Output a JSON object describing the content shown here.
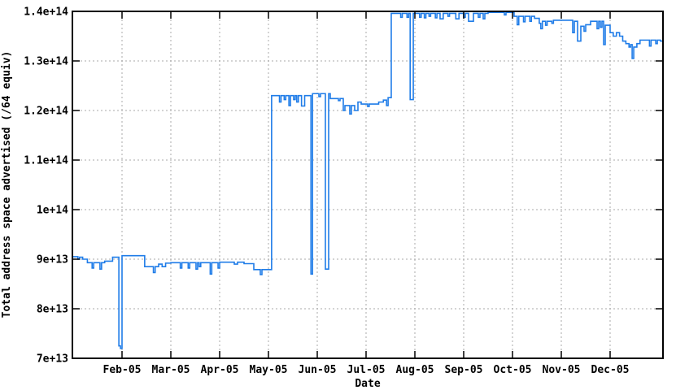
{
  "window": {
    "title": "Total address space advertised plot"
  },
  "colors": {
    "line": "#1f7ce8",
    "grid": "#aaaaaa",
    "axis": "#000000",
    "background": "#ffffff"
  },
  "chart_data": {
    "type": "line",
    "step": "after",
    "title": "",
    "xlabel": "Date",
    "ylabel": "Total address space advertised (/64 equiv)",
    "legend": "none",
    "grid": true,
    "value_unit": "1e12",
    "ylim": [
      70,
      140
    ],
    "x_range": [
      "2005-01-01",
      "2006-01-03"
    ],
    "y_ticks": [
      {
        "label": "7e+13",
        "value": 70
      },
      {
        "label": "8e+13",
        "value": 80
      },
      {
        "label": "9e+13",
        "value": 90
      },
      {
        "label": "1e+14",
        "value": 100
      },
      {
        "label": "1.1e+14",
        "value": 110
      },
      {
        "label": "1.2e+14",
        "value": 120
      },
      {
        "label": "1.3e+14",
        "value": 130
      },
      {
        "label": "1.4e+14",
        "value": 140
      }
    ],
    "x_ticks": [
      {
        "label": "Feb-05",
        "month": 1
      },
      {
        "label": "Mar-05",
        "month": 2
      },
      {
        "label": "Apr-05",
        "month": 3
      },
      {
        "label": "May-05",
        "month": 4
      },
      {
        "label": "Jun-05",
        "month": 5
      },
      {
        "label": "Jul-05",
        "month": 6
      },
      {
        "label": "Aug-05",
        "month": 7
      },
      {
        "label": "Sep-05",
        "month": 8
      },
      {
        "label": "Oct-05",
        "month": 9
      },
      {
        "label": "Nov-05",
        "month": 10
      },
      {
        "label": "Dec-05",
        "month": 11
      }
    ],
    "series": [
      {
        "name": "Total address space advertised (/64 equiv)",
        "points": [
          [
            "2005-01-01",
            90.5
          ],
          [
            "2005-01-04",
            90.0
          ],
          [
            "2005-01-05",
            90.4
          ],
          [
            "2005-01-07",
            90.0
          ],
          [
            "2005-01-10",
            89.3
          ],
          [
            "2005-01-13",
            88.2
          ],
          [
            "2005-01-14",
            89.3
          ],
          [
            "2005-01-18",
            88.0
          ],
          [
            "2005-01-19",
            89.3
          ],
          [
            "2005-01-21",
            89.6
          ],
          [
            "2005-01-26",
            90.4
          ],
          [
            "2005-01-30",
            72.5
          ],
          [
            "2005-01-31",
            72.0
          ],
          [
            "2005-02-01",
            90.7
          ],
          [
            "2005-02-14",
            88.5
          ],
          [
            "2005-02-19",
            87.3
          ],
          [
            "2005-02-20",
            88.5
          ],
          [
            "2005-02-22",
            89.0
          ],
          [
            "2005-02-24",
            88.5
          ],
          [
            "2005-02-26",
            89.2
          ],
          [
            "2005-03-01",
            89.3
          ],
          [
            "2005-03-07",
            88.2
          ],
          [
            "2005-03-08",
            89.3
          ],
          [
            "2005-03-12",
            88.2
          ],
          [
            "2005-03-13",
            89.3
          ],
          [
            "2005-03-17",
            88.0
          ],
          [
            "2005-03-18",
            89.3
          ],
          [
            "2005-03-19",
            88.5
          ],
          [
            "2005-03-20",
            89.3
          ],
          [
            "2005-03-26",
            87.0
          ],
          [
            "2005-03-27",
            89.3
          ],
          [
            "2005-03-31",
            88.2
          ],
          [
            "2005-04-01",
            89.4
          ],
          [
            "2005-04-10",
            89.0
          ],
          [
            "2005-04-12",
            89.4
          ],
          [
            "2005-04-16",
            89.1
          ],
          [
            "2005-04-22",
            87.9
          ],
          [
            "2005-04-26",
            86.9
          ],
          [
            "2005-04-27",
            87.9
          ],
          [
            "2005-05-03",
            123.0
          ],
          [
            "2005-05-08",
            121.7
          ],
          [
            "2005-05-09",
            123.0
          ],
          [
            "2005-05-11",
            122.2
          ],
          [
            "2005-05-12",
            123.0
          ],
          [
            "2005-05-14",
            121.0
          ],
          [
            "2005-05-15",
            123.0
          ],
          [
            "2005-05-17",
            122.2
          ],
          [
            "2005-05-18",
            123.0
          ],
          [
            "2005-05-19",
            121.7
          ],
          [
            "2005-05-20",
            123.0
          ],
          [
            "2005-05-22",
            120.9
          ],
          [
            "2005-05-24",
            123.0
          ],
          [
            "2005-05-28",
            87.0
          ],
          [
            "2005-05-29",
            123.4
          ],
          [
            "2005-06-02",
            122.8
          ],
          [
            "2005-06-03",
            123.4
          ],
          [
            "2005-06-06",
            88.0
          ],
          [
            "2005-06-08",
            123.4
          ],
          [
            "2005-06-09",
            122.4
          ],
          [
            "2005-06-14",
            122.0
          ],
          [
            "2005-06-15",
            122.4
          ],
          [
            "2005-06-17",
            120.0
          ],
          [
            "2005-06-18",
            121.0
          ],
          [
            "2005-06-21",
            119.3
          ],
          [
            "2005-06-22",
            121.0
          ],
          [
            "2005-06-24",
            120.0
          ],
          [
            "2005-06-26",
            121.7
          ],
          [
            "2005-06-28",
            121.3
          ],
          [
            "2005-07-02",
            120.8
          ],
          [
            "2005-07-03",
            121.3
          ],
          [
            "2005-07-09",
            121.7
          ],
          [
            "2005-07-12",
            122.1
          ],
          [
            "2005-07-14",
            121.0
          ],
          [
            "2005-07-15",
            122.6
          ],
          [
            "2005-07-17",
            139.6
          ],
          [
            "2005-07-23",
            138.8
          ],
          [
            "2005-07-24",
            139.6
          ],
          [
            "2005-07-27",
            138.8
          ],
          [
            "2005-07-28",
            139.6
          ],
          [
            "2005-07-29",
            122.2
          ],
          [
            "2005-07-31",
            139.6
          ],
          [
            "2005-08-04",
            138.8
          ],
          [
            "2005-08-05",
            139.6
          ],
          [
            "2005-08-07",
            138.7
          ],
          [
            "2005-08-08",
            139.6
          ],
          [
            "2005-08-10",
            139.0
          ],
          [
            "2005-08-11",
            139.6
          ],
          [
            "2005-08-14",
            138.7
          ],
          [
            "2005-08-15",
            139.6
          ],
          [
            "2005-08-17",
            138.5
          ],
          [
            "2005-08-19",
            139.6
          ],
          [
            "2005-08-22",
            139.0
          ],
          [
            "2005-08-23",
            139.6
          ],
          [
            "2005-08-27",
            138.5
          ],
          [
            "2005-08-29",
            139.6
          ],
          [
            "2005-09-01",
            138.8
          ],
          [
            "2005-09-02",
            139.6
          ],
          [
            "2005-09-04",
            138.0
          ],
          [
            "2005-09-07",
            139.6
          ],
          [
            "2005-09-10",
            138.8
          ],
          [
            "2005-09-11",
            139.6
          ],
          [
            "2005-09-13",
            138.5
          ],
          [
            "2005-09-14",
            139.6
          ],
          [
            "2005-09-16",
            139.8
          ],
          [
            "2005-09-26",
            139.3
          ],
          [
            "2005-09-27",
            139.8
          ],
          [
            "2005-10-02",
            139.0
          ],
          [
            "2005-10-04",
            137.3
          ],
          [
            "2005-10-05",
            139.0
          ],
          [
            "2005-10-08",
            137.9
          ],
          [
            "2005-10-09",
            139.0
          ],
          [
            "2005-10-12",
            138.0
          ],
          [
            "2005-10-13",
            139.0
          ],
          [
            "2005-10-15",
            138.6
          ],
          [
            "2005-10-18",
            137.6
          ],
          [
            "2005-10-19",
            136.5
          ],
          [
            "2005-10-20",
            138.0
          ],
          [
            "2005-10-22",
            137.2
          ],
          [
            "2005-10-23",
            138.0
          ],
          [
            "2005-10-26",
            137.6
          ],
          [
            "2005-10-27",
            138.2
          ],
          [
            "2005-11-08",
            135.7
          ],
          [
            "2005-11-09",
            138.0
          ],
          [
            "2005-11-11",
            134.0
          ],
          [
            "2005-11-13",
            137.0
          ],
          [
            "2005-11-15",
            136.0
          ],
          [
            "2005-11-16",
            137.3
          ],
          [
            "2005-11-19",
            138.0
          ],
          [
            "2005-11-23",
            136.5
          ],
          [
            "2005-11-24",
            138.0
          ],
          [
            "2005-11-25",
            136.8
          ],
          [
            "2005-11-26",
            138.0
          ],
          [
            "2005-11-27",
            133.3
          ],
          [
            "2005-11-28",
            137.2
          ],
          [
            "2005-12-01",
            135.7
          ],
          [
            "2005-12-03",
            135.0
          ],
          [
            "2005-12-05",
            135.7
          ],
          [
            "2005-12-07",
            135.0
          ],
          [
            "2005-12-09",
            134.0
          ],
          [
            "2005-12-11",
            133.5
          ],
          [
            "2005-12-13",
            132.8
          ],
          [
            "2005-12-14",
            133.3
          ],
          [
            "2005-12-15",
            130.5
          ],
          [
            "2005-12-16",
            132.8
          ],
          [
            "2005-12-18",
            133.5
          ],
          [
            "2005-12-20",
            134.2
          ],
          [
            "2005-12-26",
            133.0
          ],
          [
            "2005-12-27",
            134.2
          ],
          [
            "2005-12-30",
            133.5
          ],
          [
            "2005-12-31",
            134.2
          ],
          [
            "2006-01-02",
            134.0
          ]
        ]
      }
    ]
  }
}
